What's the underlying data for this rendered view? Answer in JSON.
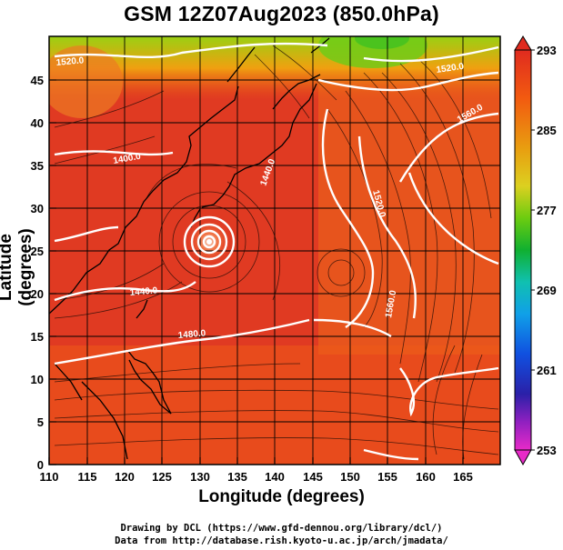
{
  "title": "GSM 12Z07Aug2023 (850.0hPa)",
  "axes": {
    "xlabel": "Longitude (degrees)",
    "ylabel": "Latitude (degrees)",
    "xlim": [
      110,
      170
    ],
    "ylim": [
      0,
      50
    ],
    "xticks": [
      "110",
      "115",
      "120",
      "125",
      "130",
      "135",
      "140",
      "145",
      "150",
      "155",
      "160",
      "165"
    ],
    "yticks": [
      "0",
      "5",
      "10",
      "15",
      "20",
      "25",
      "30",
      "35",
      "40",
      "45"
    ]
  },
  "colorbar": {
    "labels": [
      "293",
      "285",
      "277",
      "269",
      "261",
      "253"
    ],
    "colors": [
      "#d82a1e",
      "#f06010",
      "#e08a10",
      "#e8c020",
      "#7acc10",
      "#10b020",
      "#10c0a0",
      "#10a0e0",
      "#1040d0",
      "#2020a0",
      "#a020c0",
      "#e020c0"
    ]
  },
  "contour_labels": [
    "1520.0",
    "1560.0",
    "1440.0",
    "1480.0",
    "1520.0",
    "1560.0",
    "1440.0",
    "1400.0",
    "1520.0"
  ],
  "credits": {
    "line1": "Drawing by DCL (https://www.gfd-dennou.org/library/dcl/)",
    "line2": "Data from http://database.rish.kyoto-u.ac.jp/arch/jmadata/"
  }
}
